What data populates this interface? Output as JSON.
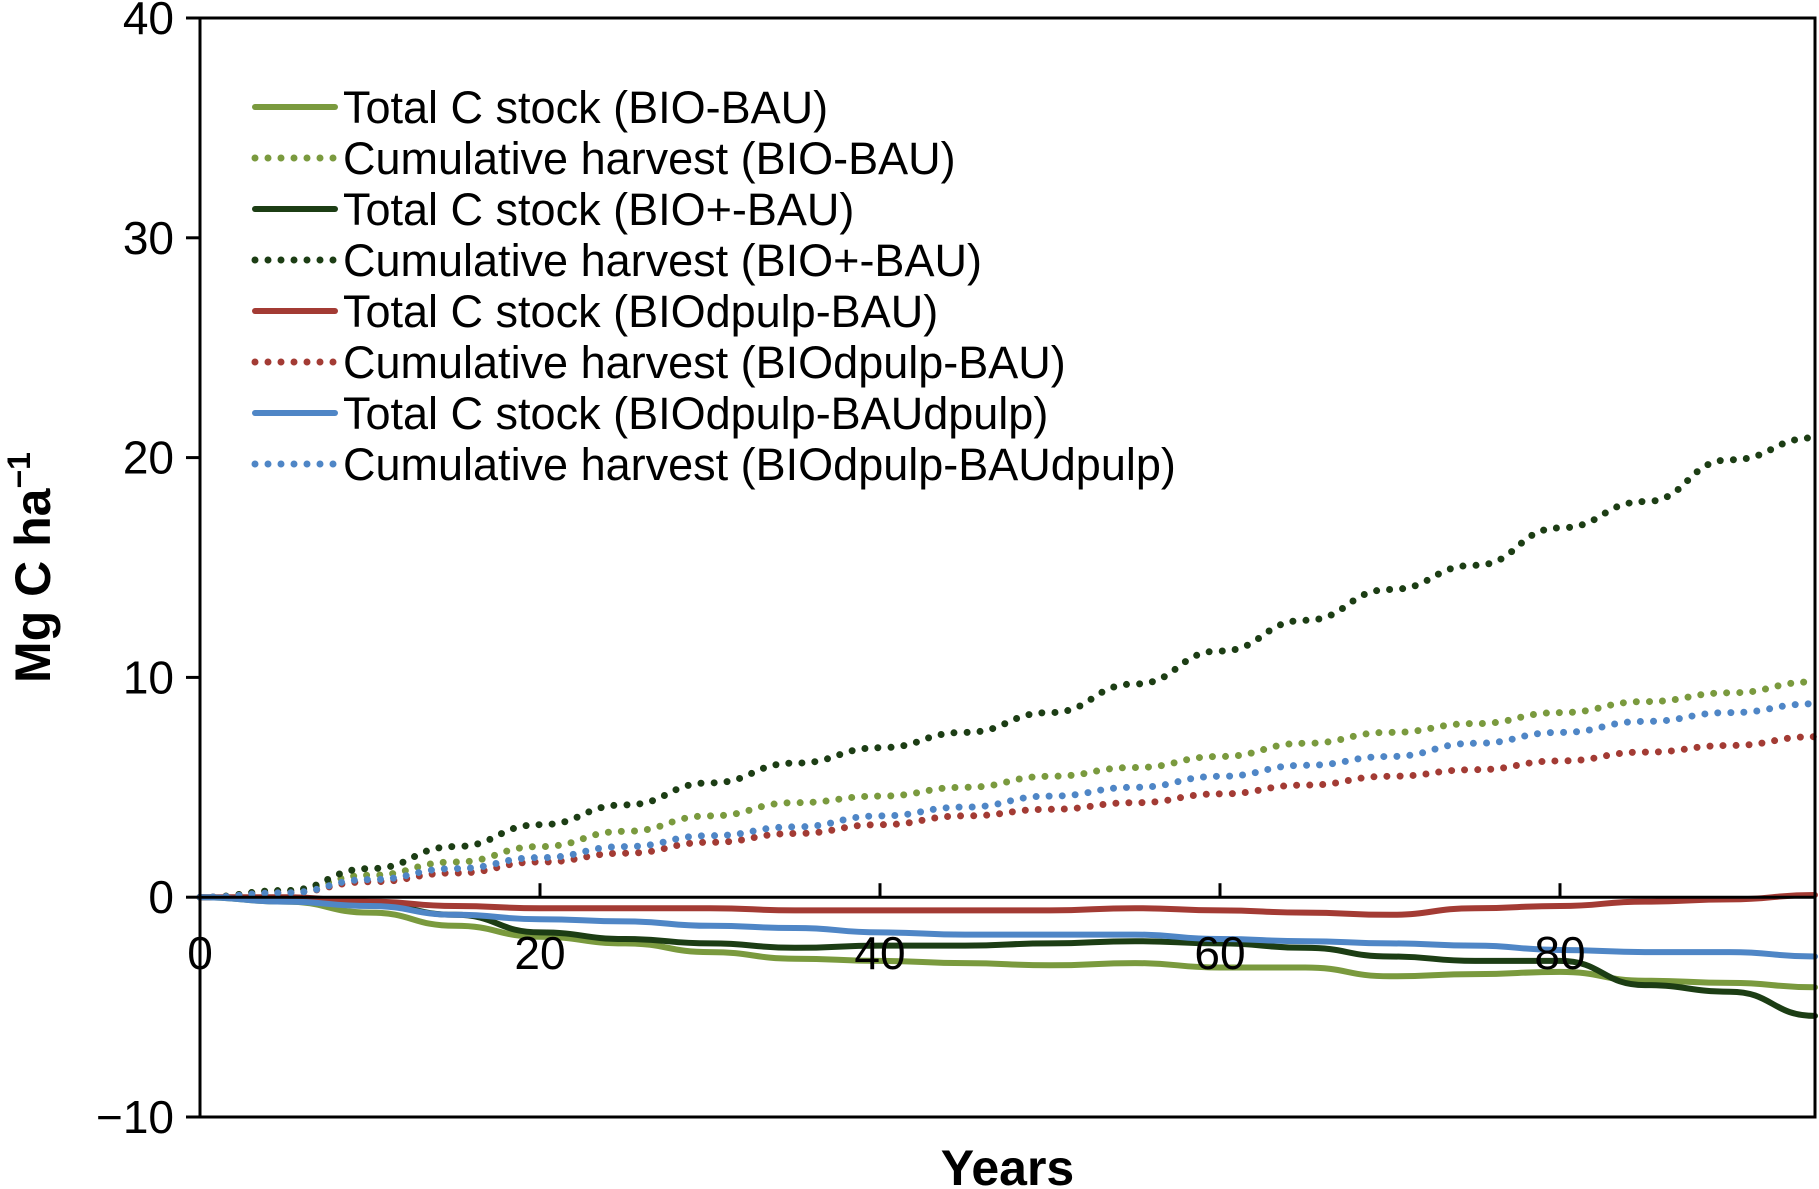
{
  "chart_data": {
    "type": "line",
    "title": "",
    "xlabel": "Years",
    "ylabel": "Mg C ha",
    "ylabel_superscript": "−1",
    "xlim": [
      0,
      95
    ],
    "ylim": [
      -10,
      40
    ],
    "xticks": [
      0,
      20,
      40,
      60,
      80
    ],
    "yticks": [
      -10,
      0,
      10,
      20,
      30,
      40
    ],
    "xtick_labels": [
      "0",
      "20",
      "40",
      "60",
      "80"
    ],
    "ytick_labels": [
      "−10",
      "0",
      "10",
      "20",
      "30",
      "40"
    ],
    "grid": false,
    "legend_position": "top-left",
    "series": [
      {
        "name": "Total C stock (BIO-BAU)",
        "color": "#7a9a3e",
        "style": "solid",
        "x": [
          0,
          5,
          10,
          15,
          20,
          25,
          30,
          35,
          40,
          45,
          50,
          55,
          60,
          65,
          70,
          75,
          80,
          85,
          90,
          95
        ],
        "y": [
          0,
          -0.2,
          -0.7,
          -1.3,
          -1.8,
          -2.1,
          -2.5,
          -2.8,
          -2.9,
          -3.0,
          -3.1,
          -3.0,
          -3.2,
          -3.2,
          -3.6,
          -3.5,
          -3.4,
          -3.8,
          -3.9,
          -4.1
        ]
      },
      {
        "name": "Cumulative harvest (BIO-BAU)",
        "color": "#7a9a3e",
        "style": "dotted",
        "x": [
          0,
          5,
          10,
          15,
          20,
          25,
          30,
          35,
          40,
          45,
          50,
          55,
          60,
          65,
          70,
          75,
          80,
          85,
          90,
          95
        ],
        "y": [
          0,
          0.3,
          1.0,
          1.6,
          2.3,
          3.0,
          3.7,
          4.3,
          4.6,
          5.0,
          5.5,
          5.9,
          6.4,
          7.0,
          7.5,
          7.9,
          8.4,
          8.9,
          9.3,
          9.8
        ]
      },
      {
        "name": "Total C stock (BIO+-BAU)",
        "color": "#1c3d14",
        "style": "solid",
        "x": [
          0,
          5,
          10,
          15,
          20,
          25,
          30,
          35,
          40,
          45,
          50,
          55,
          60,
          65,
          70,
          75,
          80,
          85,
          90,
          95
        ],
        "y": [
          0,
          -0.1,
          -0.3,
          -0.8,
          -1.6,
          -1.9,
          -2.1,
          -2.3,
          -2.2,
          -2.2,
          -2.1,
          -2.0,
          -2.1,
          -2.3,
          -2.7,
          -2.9,
          -2.9,
          -4.0,
          -4.3,
          -5.4
        ]
      },
      {
        "name": "Cumulative harvest (BIO+-BAU)",
        "color": "#1c3d14",
        "style": "dotted",
        "x": [
          0,
          5,
          10,
          15,
          20,
          25,
          30,
          35,
          40,
          45,
          50,
          55,
          60,
          65,
          70,
          75,
          80,
          85,
          90,
          95
        ],
        "y": [
          0,
          0.3,
          1.3,
          2.3,
          3.3,
          4.2,
          5.2,
          6.1,
          6.8,
          7.5,
          8.4,
          9.7,
          11.2,
          12.6,
          14.0,
          15.1,
          16.8,
          18.0,
          19.9,
          20.9
        ]
      },
      {
        "name": "Total C stock (BIOdpulp-BAU)",
        "color": "#a33b34",
        "style": "solid",
        "x": [
          0,
          5,
          10,
          15,
          20,
          25,
          30,
          35,
          40,
          45,
          50,
          55,
          60,
          65,
          70,
          75,
          80,
          85,
          90,
          95
        ],
        "y": [
          0,
          0,
          -0.2,
          -0.4,
          -0.5,
          -0.5,
          -0.5,
          -0.6,
          -0.6,
          -0.6,
          -0.6,
          -0.5,
          -0.6,
          -0.7,
          -0.8,
          -0.5,
          -0.4,
          -0.2,
          -0.1,
          0.1
        ]
      },
      {
        "name": "Cumulative harvest (BIOdpulp-BAU)",
        "color": "#a33b34",
        "style": "dotted",
        "x": [
          0,
          5,
          10,
          15,
          20,
          25,
          30,
          35,
          40,
          45,
          50,
          55,
          60,
          65,
          70,
          75,
          80,
          85,
          90,
          95
        ],
        "y": [
          0,
          0.2,
          0.7,
          1.1,
          1.6,
          2.0,
          2.5,
          2.9,
          3.3,
          3.7,
          4.0,
          4.3,
          4.7,
          5.1,
          5.5,
          5.8,
          6.2,
          6.6,
          6.9,
          7.3
        ]
      },
      {
        "name": "Total C stock (BIOdpulp-BAUdpulp)",
        "color": "#4f86c6",
        "style": "solid",
        "x": [
          0,
          5,
          10,
          15,
          20,
          25,
          30,
          35,
          40,
          45,
          50,
          55,
          60,
          65,
          70,
          75,
          80,
          85,
          90,
          95
        ],
        "y": [
          0,
          -0.2,
          -0.4,
          -0.8,
          -1.0,
          -1.1,
          -1.3,
          -1.4,
          -1.6,
          -1.7,
          -1.7,
          -1.7,
          -1.9,
          -2.0,
          -2.1,
          -2.2,
          -2.4,
          -2.5,
          -2.5,
          -2.7
        ]
      },
      {
        "name": "Cumulative harvest (BIOdpulp-BAUdpulp)",
        "color": "#4f86c6",
        "style": "dotted",
        "x": [
          0,
          5,
          10,
          15,
          20,
          25,
          30,
          35,
          40,
          45,
          50,
          55,
          60,
          65,
          70,
          75,
          80,
          85,
          90,
          95
        ],
        "y": [
          0,
          0.2,
          0.8,
          1.3,
          1.8,
          2.3,
          2.8,
          3.2,
          3.7,
          4.1,
          4.6,
          5.0,
          5.5,
          6.0,
          6.4,
          7.0,
          7.5,
          8.0,
          8.4,
          8.8
        ]
      }
    ]
  }
}
